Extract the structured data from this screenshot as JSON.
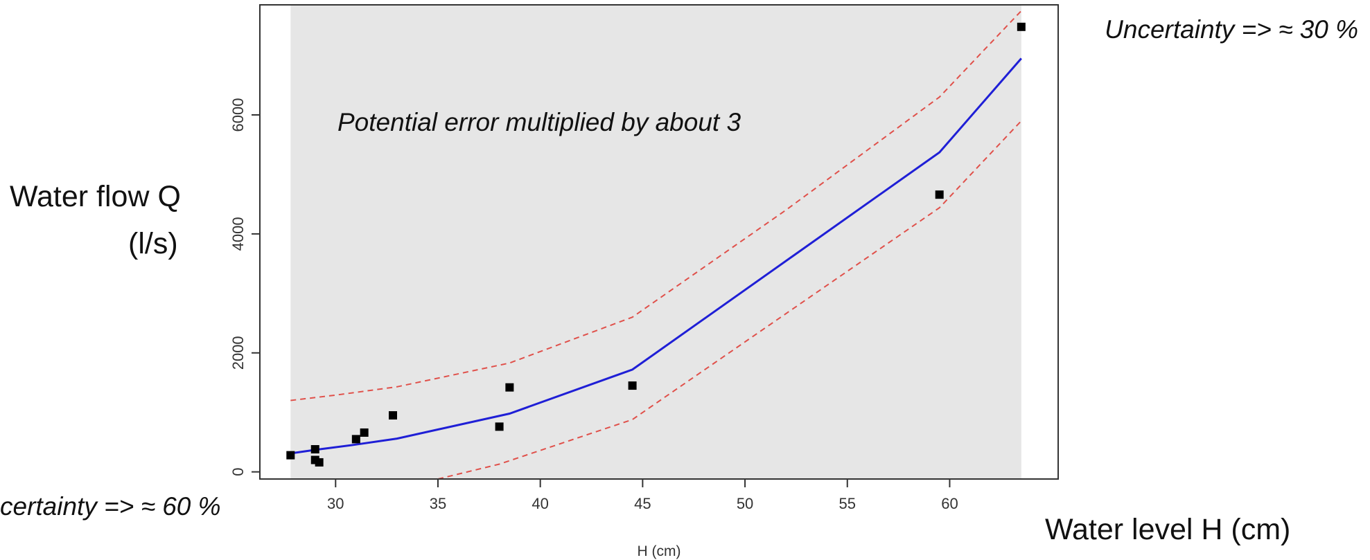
{
  "chart_data": {
    "type": "line",
    "xlabel": "H (cm)",
    "ylabel": "",
    "x_ticks": [
      30,
      35,
      40,
      45,
      50,
      55,
      60
    ],
    "y_ticks": [
      0,
      2000,
      4000,
      6000
    ],
    "xlim": [
      26.3,
      65.3
    ],
    "ylim": [
      -120,
      7850
    ],
    "grid": false,
    "series": [
      {
        "role": "fit",
        "color": "#1f1fd6",
        "x": [
          27.8,
          29,
          31,
          33,
          38.5,
          44.5,
          59.5,
          63.5
        ],
        "y": [
          310,
          370,
          460,
          560,
          980,
          1720,
          5370,
          6950
        ]
      },
      {
        "role": "upper-bound",
        "color": "#e0504a",
        "dashed": true,
        "x": [
          27.8,
          30,
          33,
          38.5,
          44.5,
          52,
          59.5,
          63.5
        ],
        "y": [
          1200,
          1290,
          1430,
          1830,
          2600,
          4400,
          6300,
          7750
        ]
      },
      {
        "role": "lower-bound",
        "color": "#e0504a",
        "dashed": true,
        "x": [
          35,
          38,
          44.5,
          59.5,
          63.5
        ],
        "y": [
          -120,
          130,
          880,
          4440,
          5900
        ]
      },
      {
        "role": "observations",
        "type": "scatter",
        "color": "#000000",
        "x": [
          27.8,
          29,
          29,
          29.2,
          31,
          31.4,
          32.8,
          38,
          38.5,
          44.5,
          59.5,
          63.5
        ],
        "y": [
          280,
          380,
          200,
          160,
          550,
          660,
          950,
          760,
          1420,
          1450,
          4660,
          7480
        ]
      }
    ],
    "band": {
      "role": "uncertainty-band",
      "color": "#e6e6e6",
      "x": [
        27.8,
        63.5
      ]
    }
  },
  "annotations": {
    "y_axis_title_line1": "Water flow Q",
    "y_axis_title_line2": "(l/s)",
    "x_axis_title": "Water level H (cm)",
    "center_note": "Potential error multiplied by about 3",
    "top_right_note": "Uncertainty => ≈ 30 %",
    "bottom_left_note": "certainty => ≈ 60 %"
  }
}
